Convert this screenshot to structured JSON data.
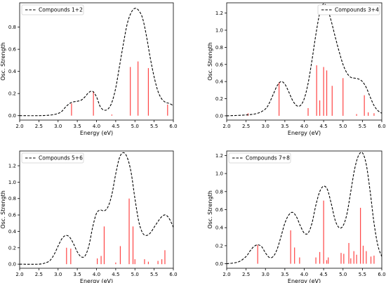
{
  "chart_data": [
    {
      "type": "line",
      "legend": {
        "label": "Compounds 1+2",
        "placement": "top-left"
      },
      "xlabel": "Energy (eV)",
      "ylabel": "Osc. Strength",
      "xlim": [
        2.0,
        6.0
      ],
      "ylim": [
        -0.04,
        1.02
      ],
      "xticks": [
        "2.0",
        "2.5",
        "3.0",
        "3.5",
        "4.0",
        "4.5",
        "5.0",
        "5.5",
        "6.0"
      ],
      "yticks": [
        "0.0",
        "0.2",
        "0.4",
        "0.6",
        "0.8"
      ],
      "ytick_values": [
        0.0,
        0.2,
        0.4,
        0.6,
        0.8
      ],
      "grid": false,
      "spectrum": {
        "x": [
          2.0,
          2.5,
          2.8,
          3.0,
          3.1,
          3.2,
          3.3,
          3.4,
          3.5,
          3.6,
          3.7,
          3.8,
          3.9,
          4.0,
          4.1,
          4.2,
          4.3,
          4.4,
          4.5,
          4.6,
          4.7,
          4.8,
          4.9,
          5.0,
          5.1,
          5.2,
          5.3,
          5.4,
          5.5,
          5.6,
          5.7,
          5.8,
          5.9,
          6.0
        ],
        "y": [
          0.0,
          0.0,
          0.005,
          0.02,
          0.04,
          0.08,
          0.11,
          0.125,
          0.13,
          0.14,
          0.17,
          0.21,
          0.22,
          0.17,
          0.08,
          0.05,
          0.06,
          0.12,
          0.25,
          0.45,
          0.65,
          0.83,
          0.93,
          0.97,
          0.95,
          0.88,
          0.72,
          0.52,
          0.35,
          0.22,
          0.15,
          0.12,
          0.11,
          0.09
        ]
      },
      "sticks": {
        "x": [
          3.35,
          3.92,
          4.4,
          4.88,
          5.08,
          5.35,
          5.85
        ],
        "y": [
          0.11,
          0.22,
          0.01,
          0.44,
          0.49,
          0.43,
          0.1
        ]
      },
      "colors": {
        "spectrum": "#000000",
        "sticks": "#ff4444"
      }
    },
    {
      "type": "line",
      "legend": {
        "label": "Compounds 3+4",
        "placement": "top-right"
      },
      "xlabel": "Energy (eV)",
      "ylabel": "Osc. Strength",
      "xlim": [
        2.0,
        6.0
      ],
      "ylim": [
        -0.05,
        1.32
      ],
      "xticks": [
        "2.0",
        "2.5",
        "3.0",
        "3.5",
        "4.0",
        "4.5",
        "5.0",
        "5.5",
        "6.0"
      ],
      "yticks": [
        "0.0",
        "0.2",
        "0.4",
        "0.6",
        "0.8",
        "1.0",
        "1.2"
      ],
      "ytick_values": [
        0.0,
        0.2,
        0.4,
        0.6,
        0.8,
        1.0,
        1.2
      ],
      "grid": false,
      "spectrum": {
        "x": [
          2.0,
          2.5,
          2.8,
          3.0,
          3.1,
          3.2,
          3.3,
          3.4,
          3.5,
          3.6,
          3.7,
          3.8,
          3.9,
          4.0,
          4.1,
          4.2,
          4.3,
          4.4,
          4.5,
          4.6,
          4.7,
          4.8,
          4.9,
          5.0,
          5.1,
          5.2,
          5.3,
          5.4,
          5.5,
          5.6,
          5.7,
          5.8,
          5.9,
          6.0
        ],
        "y": [
          0.0,
          0.01,
          0.03,
          0.08,
          0.15,
          0.25,
          0.35,
          0.4,
          0.37,
          0.28,
          0.18,
          0.12,
          0.12,
          0.2,
          0.38,
          0.65,
          0.95,
          1.2,
          1.31,
          1.25,
          1.1,
          0.92,
          0.75,
          0.6,
          0.5,
          0.45,
          0.44,
          0.43,
          0.4,
          0.33,
          0.22,
          0.12,
          0.06,
          0.03
        ]
      },
      "sticks": {
        "x": [
          2.55,
          3.35,
          4.1,
          4.32,
          4.4,
          4.5,
          4.58,
          4.72,
          5.0,
          5.35,
          5.55,
          5.65,
          5.8
        ],
        "y": [
          0.03,
          0.39,
          0.09,
          0.59,
          0.18,
          0.57,
          0.53,
          0.35,
          0.44,
          0.02,
          0.24,
          0.04,
          0.03
        ]
      },
      "colors": {
        "spectrum": "#000000",
        "sticks": "#ff4444"
      }
    },
    {
      "type": "line",
      "legend": {
        "label": "Compounds 5+6",
        "placement": "top-left"
      },
      "xlabel": "Energy (eV)",
      "ylabel": "Osc. Strength",
      "xlim": [
        2.0,
        6.0
      ],
      "ylim": [
        -0.05,
        1.38
      ],
      "xticks": [
        "2.0",
        "2.5",
        "3.0",
        "3.5",
        "4.0",
        "4.5",
        "5.0",
        "5.5",
        "6.0"
      ],
      "yticks": [
        "0.0",
        "0.2",
        "0.4",
        "0.6",
        "0.8",
        "1.0",
        "1.2"
      ],
      "ytick_values": [
        0.0,
        0.2,
        0.4,
        0.6,
        0.8,
        1.0,
        1.2
      ],
      "grid": false,
      "spectrum": {
        "x": [
          2.0,
          2.5,
          2.7,
          2.8,
          2.9,
          3.0,
          3.1,
          3.2,
          3.3,
          3.4,
          3.5,
          3.6,
          3.7,
          3.8,
          3.9,
          4.0,
          4.1,
          4.2,
          4.3,
          4.4,
          4.5,
          4.6,
          4.7,
          4.8,
          4.9,
          5.0,
          5.1,
          5.2,
          5.3,
          5.4,
          5.5,
          5.6,
          5.7,
          5.8,
          5.9,
          6.0
        ],
        "y": [
          0.0,
          0.0,
          0.02,
          0.05,
          0.12,
          0.22,
          0.31,
          0.35,
          0.33,
          0.25,
          0.15,
          0.09,
          0.1,
          0.22,
          0.45,
          0.62,
          0.66,
          0.65,
          0.7,
          0.85,
          1.1,
          1.3,
          1.36,
          1.3,
          1.12,
          0.8,
          0.52,
          0.38,
          0.35,
          0.38,
          0.45,
          0.52,
          0.58,
          0.6,
          0.55,
          0.45
        ]
      },
      "sticks": {
        "x": [
          3.22,
          3.33,
          4.02,
          4.12,
          4.2,
          4.5,
          4.62,
          4.85,
          4.95,
          5.0,
          5.25,
          5.35,
          5.6,
          5.7,
          5.78
        ],
        "y": [
          0.2,
          0.19,
          0.07,
          0.1,
          0.46,
          0.02,
          0.22,
          0.8,
          0.46,
          0.06,
          0.06,
          0.03,
          0.04,
          0.06,
          0.17
        ]
      },
      "colors": {
        "spectrum": "#000000",
        "sticks": "#ff4444"
      }
    },
    {
      "type": "line",
      "legend": {
        "label": "Compounds 7+8",
        "placement": "top-left"
      },
      "xlabel": "Energy (eV)",
      "ylabel": "Osc. Strength",
      "xlim": [
        2.0,
        6.0
      ],
      "ylim": [
        -0.05,
        1.25
      ],
      "xticks": [
        "2.0",
        "2.5",
        "3.0",
        "3.5",
        "4.0",
        "4.5",
        "5.0",
        "5.5",
        "6.0"
      ],
      "yticks": [
        "0.0",
        "0.2",
        "0.4",
        "0.6",
        "0.8",
        "1.0",
        "1.2"
      ],
      "ytick_values": [
        0.0,
        0.2,
        0.4,
        0.6,
        0.8,
        1.0,
        1.2
      ],
      "grid": false,
      "spectrum": {
        "x": [
          2.0,
          2.3,
          2.5,
          2.6,
          2.7,
          2.8,
          2.9,
          3.0,
          3.1,
          3.2,
          3.3,
          3.4,
          3.5,
          3.6,
          3.7,
          3.8,
          3.9,
          4.0,
          4.1,
          4.2,
          4.3,
          4.4,
          4.5,
          4.6,
          4.7,
          4.8,
          4.9,
          5.0,
          5.1,
          5.2,
          5.3,
          5.4,
          5.5,
          5.6,
          5.7,
          5.8,
          5.9,
          6.0
        ],
        "y": [
          0.0,
          0.02,
          0.08,
          0.14,
          0.19,
          0.21,
          0.19,
          0.12,
          0.07,
          0.08,
          0.16,
          0.3,
          0.45,
          0.54,
          0.57,
          0.52,
          0.42,
          0.34,
          0.34,
          0.45,
          0.65,
          0.8,
          0.86,
          0.82,
          0.66,
          0.48,
          0.4,
          0.42,
          0.55,
          0.8,
          1.05,
          1.2,
          1.23,
          1.1,
          0.8,
          0.45,
          0.2,
          0.08
        ]
      },
      "sticks": {
        "x": [
          2.8,
          3.65,
          3.75,
          3.88,
          4.3,
          4.4,
          4.5,
          4.58,
          4.62,
          4.95,
          5.02,
          5.15,
          5.2,
          5.28,
          5.35,
          5.45,
          5.52,
          5.6,
          5.72,
          5.8
        ],
        "y": [
          0.21,
          0.37,
          0.18,
          0.07,
          0.07,
          0.13,
          0.7,
          0.04,
          0.07,
          0.12,
          0.11,
          0.23,
          0.06,
          0.14,
          0.1,
          0.62,
          0.2,
          0.14,
          0.08,
          0.09
        ]
      },
      "colors": {
        "spectrum": "#000000",
        "sticks": "#ff4444"
      }
    }
  ]
}
